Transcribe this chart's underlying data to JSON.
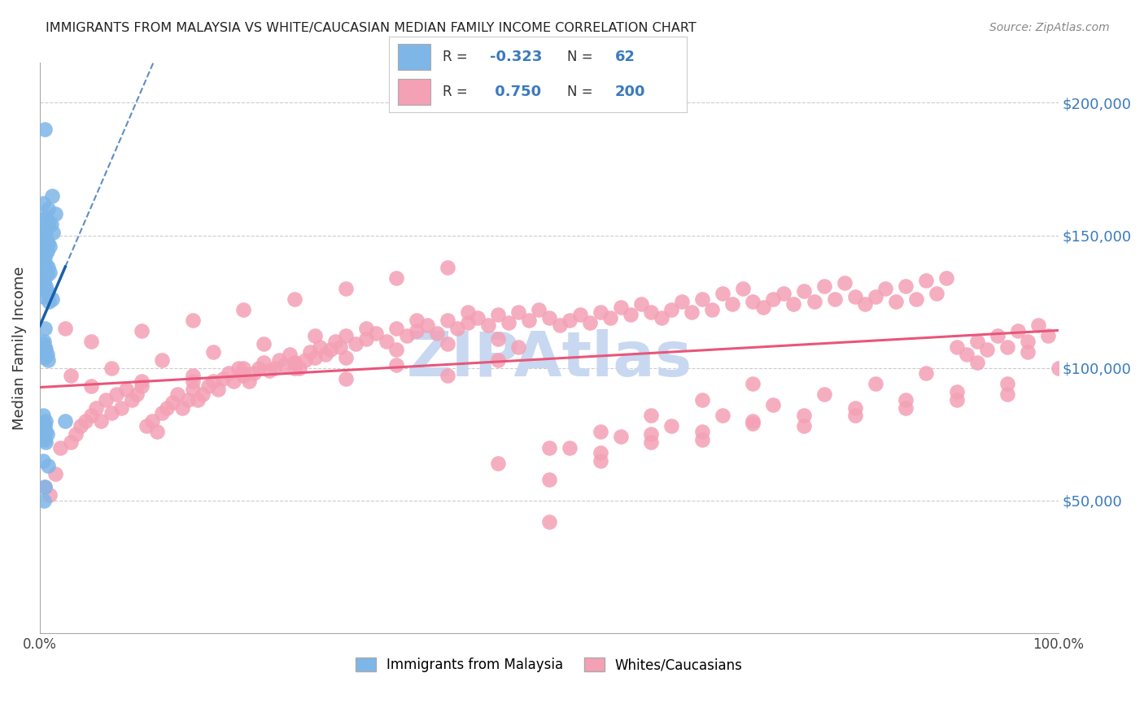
{
  "title": "IMMIGRANTS FROM MALAYSIA VS WHITE/CAUCASIAN MEDIAN FAMILY INCOME CORRELATION CHART",
  "source": "Source: ZipAtlas.com",
  "ylabel": "Median Family Income",
  "ytick_labels": [
    "$50,000",
    "$100,000",
    "$150,000",
    "$200,000"
  ],
  "ytick_values": [
    50000,
    100000,
    150000,
    200000
  ],
  "ylim": [
    0,
    215000
  ],
  "xlim": [
    0.0,
    100.0
  ],
  "r_blue": -0.323,
  "n_blue": 62,
  "r_pink": 0.75,
  "n_pink": 200,
  "blue_color": "#7eb6e8",
  "pink_color": "#f4a0b5",
  "blue_line_color": "#1a5fa8",
  "pink_line_color": "#e8567a",
  "watermark": "ZIPAtlas",
  "watermark_color": "#c8d8f0",
  "background_color": "#ffffff",
  "blue_scatter_x": [
    0.5,
    1.2,
    0.3,
    0.8,
    1.5,
    0.6,
    0.4,
    0.9,
    1.1,
    0.7,
    0.2,
    1.3,
    0.6,
    0.5,
    0.3,
    0.8,
    1.0,
    0.4,
    0.7,
    0.6,
    0.5,
    0.3,
    0.4,
    0.6,
    0.8,
    0.5,
    1.0,
    0.7,
    0.3,
    0.2,
    0.4,
    0.6,
    0.5,
    0.7,
    0.8,
    0.3,
    1.2,
    0.9,
    0.5,
    0.4,
    0.3,
    0.5,
    0.6,
    0.4,
    0.7,
    0.5,
    0.8,
    0.3,
    0.6,
    2.5,
    0.4,
    0.5,
    0.3,
    0.6,
    0.7,
    0.4,
    0.5,
    0.6,
    0.3,
    0.8,
    0.5,
    0.4
  ],
  "blue_scatter_y": [
    190000,
    165000,
    162000,
    160000,
    158000,
    157000,
    156000,
    155000,
    154000,
    153000,
    152000,
    151000,
    150000,
    149000,
    148000,
    147000,
    146000,
    145000,
    144000,
    143000,
    142000,
    141000,
    140000,
    139000,
    138000,
    137000,
    136000,
    135000,
    134000,
    133000,
    132000,
    131000,
    130000,
    129000,
    128000,
    127000,
    126000,
    125000,
    115000,
    110000,
    109000,
    108000,
    107000,
    106000,
    105000,
    104000,
    103000,
    82000,
    80000,
    80000,
    79000,
    78000,
    77000,
    76000,
    75000,
    74000,
    73000,
    72000,
    65000,
    63000,
    55000,
    50000
  ],
  "pink_scatter_x": [
    0.5,
    1.0,
    1.5,
    2.0,
    2.5,
    3.0,
    3.5,
    4.0,
    4.5,
    5.0,
    5.5,
    6.0,
    6.5,
    7.0,
    7.5,
    8.0,
    8.5,
    9.0,
    9.5,
    10.0,
    10.5,
    11.0,
    11.5,
    12.0,
    12.5,
    13.0,
    13.5,
    14.0,
    14.5,
    15.0,
    15.5,
    16.0,
    16.5,
    17.0,
    17.5,
    18.0,
    18.5,
    19.0,
    19.5,
    20.0,
    20.5,
    21.0,
    21.5,
    22.0,
    22.5,
    23.0,
    23.5,
    24.0,
    24.5,
    25.0,
    25.5,
    26.0,
    26.5,
    27.0,
    27.5,
    28.0,
    28.5,
    29.0,
    29.5,
    30.0,
    31.0,
    32.0,
    33.0,
    34.0,
    35.0,
    36.0,
    37.0,
    38.0,
    39.0,
    40.0,
    41.0,
    42.0,
    43.0,
    44.0,
    45.0,
    46.0,
    47.0,
    48.0,
    49.0,
    50.0,
    51.0,
    52.0,
    53.0,
    54.0,
    55.0,
    56.0,
    57.0,
    58.0,
    59.0,
    60.0,
    61.0,
    62.0,
    63.0,
    64.0,
    65.0,
    66.0,
    67.0,
    68.0,
    69.0,
    70.0,
    71.0,
    72.0,
    73.0,
    74.0,
    75.0,
    76.0,
    77.0,
    78.0,
    79.0,
    80.0,
    81.0,
    82.0,
    83.0,
    84.0,
    85.0,
    86.0,
    87.0,
    88.0,
    89.0,
    90.0,
    91.0,
    92.0,
    93.0,
    94.0,
    95.0,
    96.0,
    97.0,
    98.0,
    99.0,
    100.0,
    15.0,
    20.0,
    25.0,
    30.0,
    35.0,
    40.0,
    45.0,
    50.0,
    55.0,
    60.0,
    65.0,
    70.0,
    75.0,
    80.0,
    85.0,
    90.0,
    95.0,
    5.0,
    10.0,
    15.0,
    20.0,
    25.0,
    30.0,
    35.0,
    40.0,
    45.0,
    50.0,
    55.0,
    60.0,
    65.0,
    70.0,
    75.0,
    80.0,
    85.0,
    90.0,
    95.0,
    3.0,
    7.0,
    12.0,
    17.0,
    22.0,
    27.0,
    32.0,
    37.0,
    42.0,
    47.0,
    52.0,
    57.0,
    62.0,
    67.0,
    72.0,
    77.0,
    82.0,
    87.0,
    92.0,
    97.0,
    5.0,
    10.0,
    15.0,
    20.0,
    25.0,
    30.0,
    35.0,
    40.0,
    45.0,
    50.0,
    55.0,
    60.0,
    65.0,
    70.0
  ],
  "pink_scatter_y": [
    55000,
    52000,
    60000,
    70000,
    115000,
    72000,
    75000,
    78000,
    80000,
    82000,
    85000,
    80000,
    88000,
    83000,
    90000,
    85000,
    92000,
    88000,
    90000,
    93000,
    78000,
    80000,
    76000,
    83000,
    85000,
    87000,
    90000,
    85000,
    88000,
    92000,
    88000,
    90000,
    93000,
    95000,
    92000,
    96000,
    98000,
    95000,
    100000,
    97000,
    95000,
    98000,
    100000,
    102000,
    99000,
    100000,
    103000,
    101000,
    105000,
    102000,
    100000,
    103000,
    106000,
    104000,
    108000,
    105000,
    107000,
    110000,
    108000,
    112000,
    109000,
    111000,
    113000,
    110000,
    115000,
    112000,
    114000,
    116000,
    113000,
    118000,
    115000,
    117000,
    119000,
    116000,
    120000,
    117000,
    121000,
    118000,
    122000,
    119000,
    116000,
    118000,
    120000,
    117000,
    121000,
    119000,
    123000,
    120000,
    124000,
    121000,
    119000,
    122000,
    125000,
    121000,
    126000,
    122000,
    128000,
    124000,
    130000,
    125000,
    123000,
    126000,
    128000,
    124000,
    129000,
    125000,
    131000,
    126000,
    132000,
    127000,
    124000,
    127000,
    130000,
    125000,
    131000,
    126000,
    133000,
    128000,
    134000,
    108000,
    105000,
    110000,
    107000,
    112000,
    108000,
    114000,
    110000,
    116000,
    112000,
    100000,
    95000,
    98000,
    100000,
    96000,
    101000,
    97000,
    103000,
    42000,
    65000,
    75000,
    73000,
    80000,
    78000,
    82000,
    85000,
    88000,
    90000,
    93000,
    95000,
    97000,
    100000,
    102000,
    104000,
    107000,
    109000,
    111000,
    58000,
    68000,
    72000,
    76000,
    79000,
    82000,
    85000,
    88000,
    91000,
    94000,
    97000,
    100000,
    103000,
    106000,
    109000,
    112000,
    115000,
    118000,
    121000,
    108000,
    70000,
    74000,
    78000,
    82000,
    86000,
    90000,
    94000,
    98000,
    102000,
    106000,
    110000,
    114000,
    118000,
    122000,
    126000,
    130000,
    134000,
    138000,
    64000,
    70000,
    76000,
    82000,
    88000,
    94000
  ]
}
